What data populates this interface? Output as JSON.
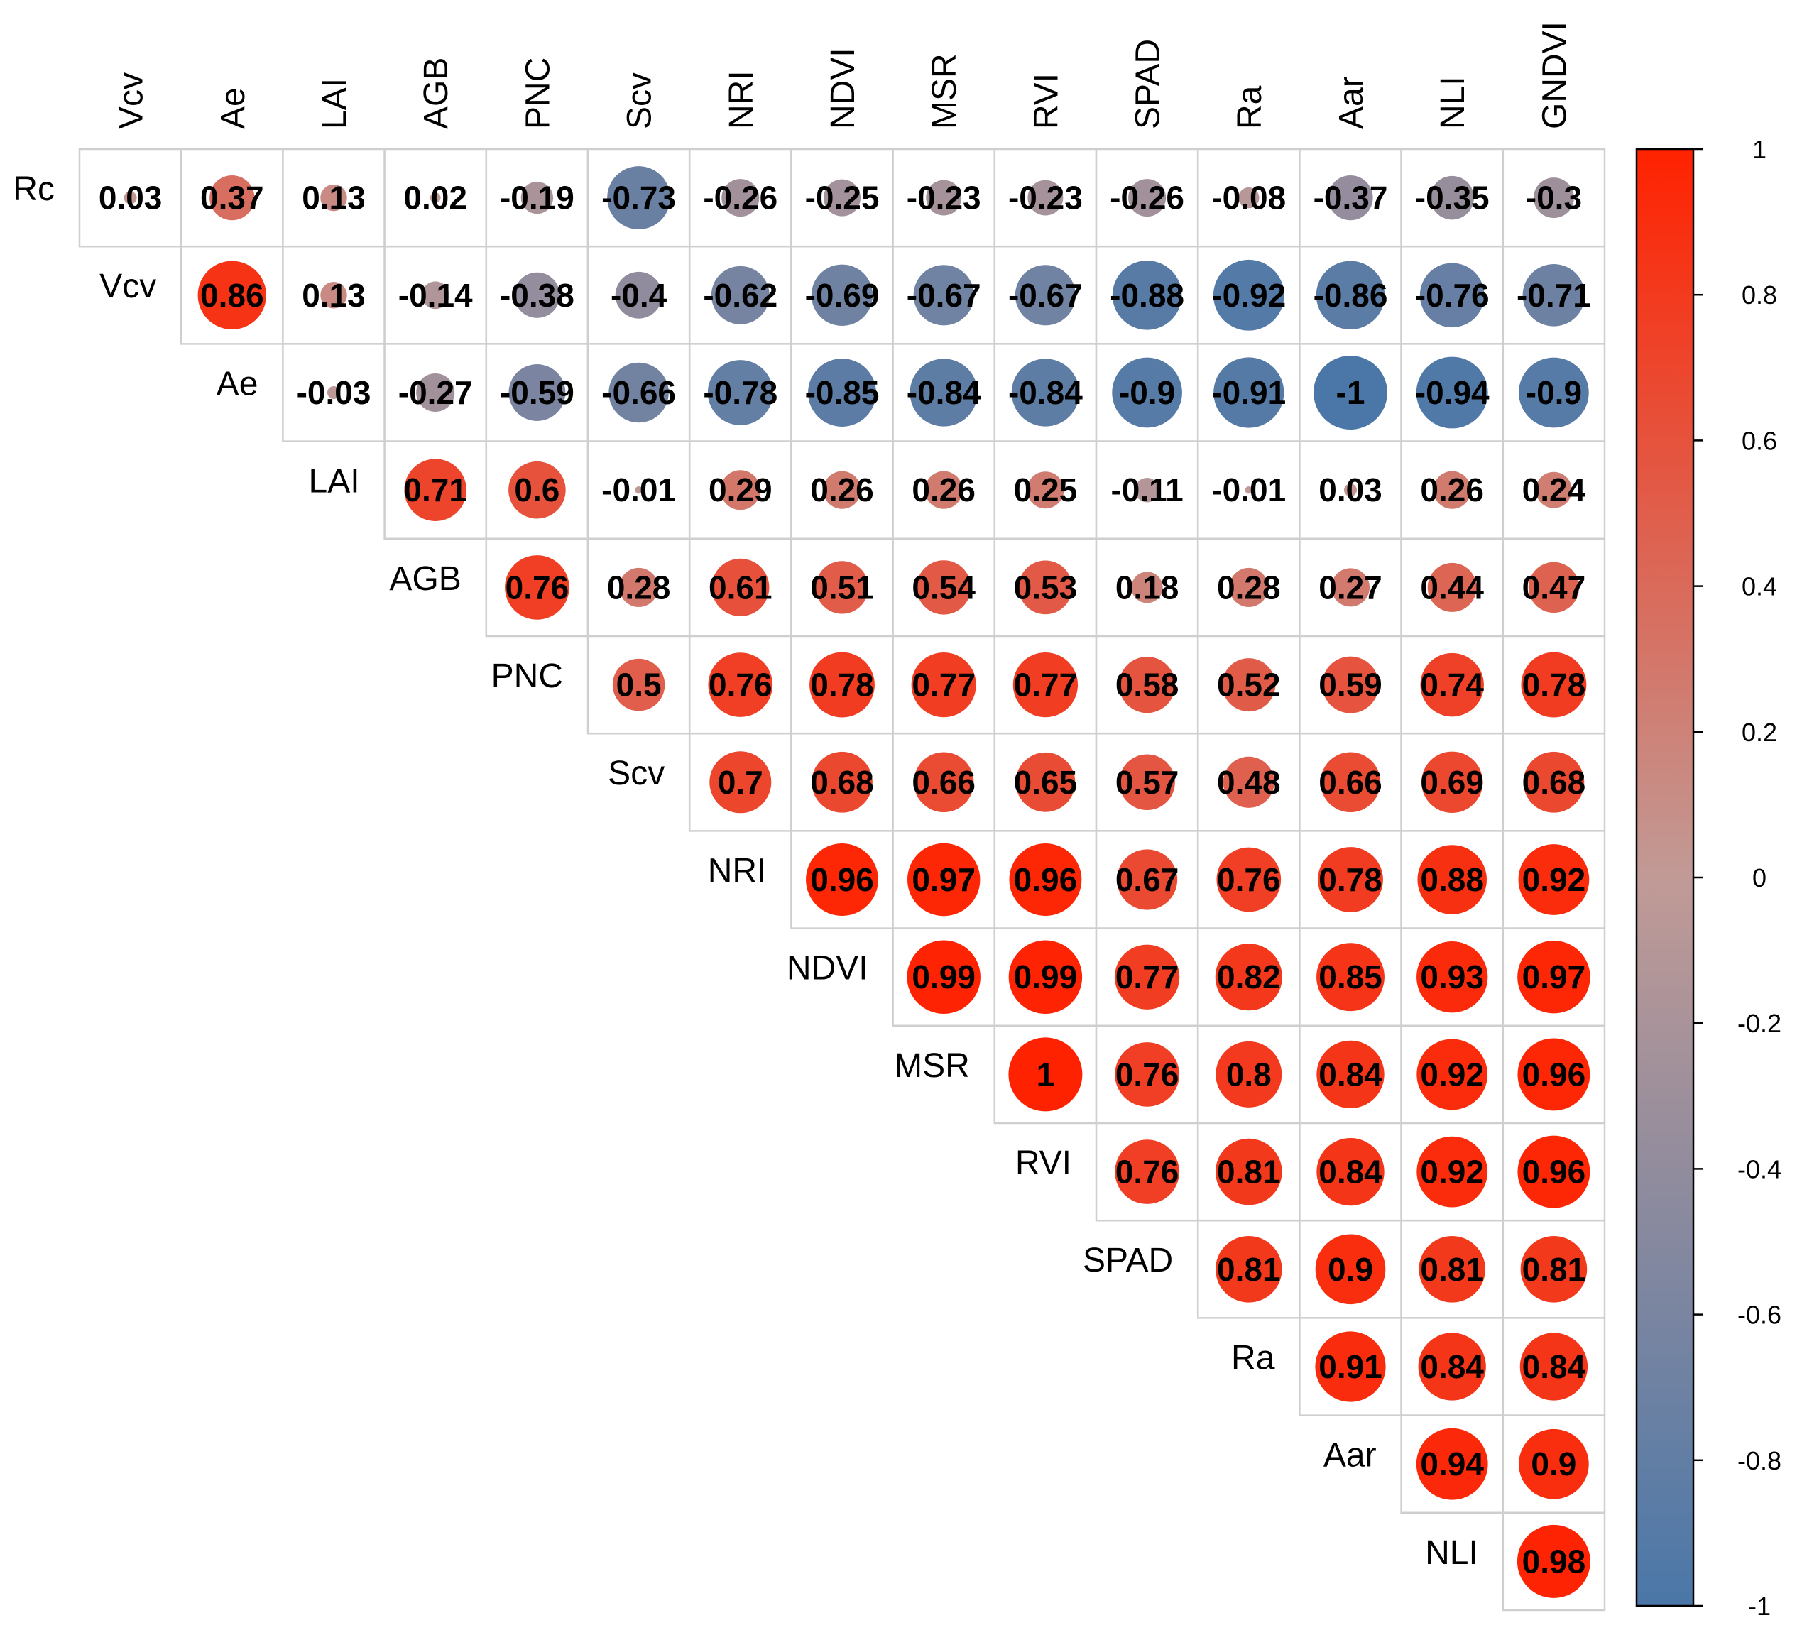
{
  "chart_data": {
    "type": "heatmap",
    "variant": "upper-triangular correlation matrix with sized circles",
    "column_labels": [
      "Vcv",
      "Ae",
      "LAI",
      "AGB",
      "PNC",
      "Scv",
      "NRI",
      "NDVI",
      "MSR",
      "RVI",
      "SPAD",
      "Ra",
      "Aar",
      "NLI",
      "GNDVI"
    ],
    "row_labels": [
      "Rc",
      "Vcv",
      "Ae",
      "LAI",
      "AGB",
      "PNC",
      "Scv",
      "NRI",
      "NDVI",
      "MSR",
      "RVI",
      "SPAD",
      "Ra",
      "Aar",
      "NLI"
    ],
    "rows": [
      {
        "label": "Rc",
        "values": [
          "0.03",
          "0.37",
          "0.13",
          "0.02",
          "-0.19",
          "-0.73",
          "-0.26",
          "-0.25",
          "-0.23",
          "-0.23",
          "-0.26",
          "-0.08",
          "-0.37",
          "-0.35",
          "-0.3"
        ]
      },
      {
        "label": "Vcv",
        "values": [
          "0.86",
          "0.13",
          "-0.14",
          "-0.38",
          "-0.4",
          "-0.62",
          "-0.69",
          "-0.67",
          "-0.67",
          "-0.88",
          "-0.92",
          "-0.86",
          "-0.76",
          "-0.71"
        ]
      },
      {
        "label": "Ae",
        "values": [
          "-0.03",
          "-0.27",
          "-0.59",
          "-0.66",
          "-0.78",
          "-0.85",
          "-0.84",
          "-0.84",
          "-0.9",
          "-0.91",
          "-1",
          "-0.94",
          "-0.9"
        ]
      },
      {
        "label": "LAI",
        "values": [
          "0.71",
          "0.6",
          "-0.01",
          "0.29",
          "0.26",
          "0.26",
          "0.25",
          "-0.11",
          "-0.01",
          "0.03",
          "0.26",
          "0.24"
        ]
      },
      {
        "label": "AGB",
        "values": [
          "0.76",
          "0.28",
          "0.61",
          "0.51",
          "0.54",
          "0.53",
          "0.18",
          "0.28",
          "0.27",
          "0.44",
          "0.47"
        ]
      },
      {
        "label": "PNC",
        "values": [
          "0.5",
          "0.76",
          "0.78",
          "0.77",
          "0.77",
          "0.58",
          "0.52",
          "0.59",
          "0.74",
          "0.78"
        ]
      },
      {
        "label": "Scv",
        "values": [
          "0.7",
          "0.68",
          "0.66",
          "0.65",
          "0.57",
          "0.48",
          "0.66",
          "0.69",
          "0.68"
        ]
      },
      {
        "label": "NRI",
        "values": [
          "0.96",
          "0.97",
          "0.96",
          "0.67",
          "0.76",
          "0.78",
          "0.88",
          "0.92"
        ]
      },
      {
        "label": "NDVI",
        "values": [
          "0.99",
          "0.99",
          "0.77",
          "0.82",
          "0.85",
          "0.93",
          "0.97"
        ]
      },
      {
        "label": "MSR",
        "values": [
          "1",
          "0.76",
          "0.8",
          "0.84",
          "0.92",
          "0.96"
        ]
      },
      {
        "label": "RVI",
        "values": [
          "0.76",
          "0.81",
          "0.84",
          "0.92",
          "0.96"
        ]
      },
      {
        "label": "SPAD",
        "values": [
          "0.81",
          "0.9",
          "0.81",
          "0.81"
        ]
      },
      {
        "label": "Ra",
        "values": [
          "0.91",
          "0.84",
          "0.84"
        ]
      },
      {
        "label": "Aar",
        "values": [
          "0.94",
          "0.9"
        ]
      },
      {
        "label": "NLI",
        "values": [
          "0.98"
        ]
      }
    ],
    "color_scale": {
      "range": [
        -1,
        1
      ],
      "low_color": "#4a77a8",
      "mid_color": "#c19a96",
      "high_color": "#ff2200",
      "ticks": [
        "1",
        "0.8",
        "0.6",
        "0.4",
        "0.2",
        "0",
        "-0.2",
        "-0.4",
        "-0.6",
        "-0.8",
        "-1"
      ]
    },
    "circle_size": "proportional to |r|",
    "legend": "right"
  }
}
